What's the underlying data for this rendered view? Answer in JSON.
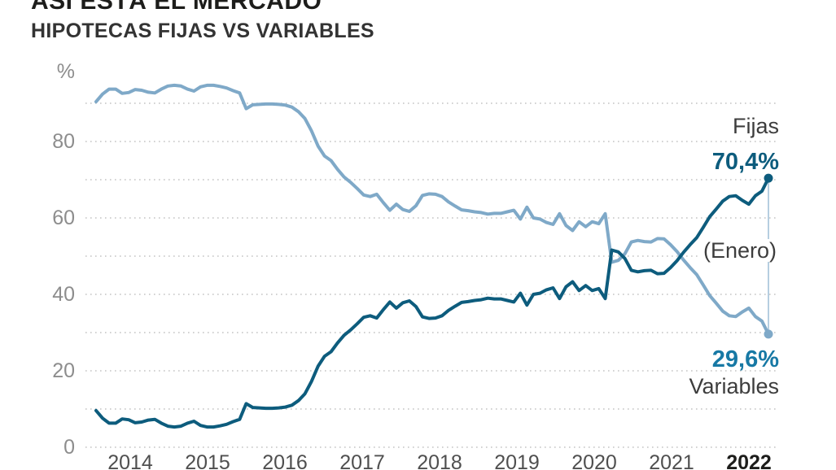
{
  "header": {
    "title": "ASÍ ESTÁ EL MERCADO",
    "subtitle": "HIPOTECAS FIJAS VS VARIABLES"
  },
  "chart_data": {
    "type": "line",
    "title": "HIPOTECAS FIJAS VS VARIABLES",
    "unit_label": "%",
    "x_tick_labels": [
      "2014",
      "2015",
      "2016",
      "2017",
      "2018",
      "2019",
      "2020",
      "2021",
      "2022"
    ],
    "y_tick_labels": [
      80,
      60,
      40,
      20,
      0
    ],
    "ylim": [
      0,
      95
    ],
    "grid": "horizontal dotted gridlines every 10 percentage points, from 0 to 90",
    "legend_position": "right-end annotations next to last data points",
    "x_note": "monthly data from 2014 to enero 2022",
    "series": [
      {
        "name": "Fijas",
        "color": "#0d5c7d",
        "end_value": 70.4,
        "end_value_label": "70,4%",
        "values": [
          9.6,
          7.6,
          6.3,
          6.3,
          7.4,
          7.2,
          6.4,
          6.6,
          7.1,
          7.3,
          6.3,
          5.5,
          5.3,
          5.5,
          6.3,
          6.8,
          5.7,
          5.3,
          5.3,
          5.6,
          6.0,
          6.7,
          7.3,
          11.4,
          10.4,
          10.3,
          10.2,
          10.2,
          10.3,
          10.5,
          11.0,
          12.2,
          14.0,
          17.2,
          21.2,
          23.8,
          25.0,
          27.3,
          29.3,
          30.7,
          32.3,
          34.0,
          34.4,
          33.8,
          36.0,
          38.0,
          36.4,
          37.8,
          38.3,
          36.8,
          34.1,
          33.7,
          33.8,
          34.4,
          35.8,
          36.9,
          37.9,
          38.1,
          38.4,
          38.6,
          39.0,
          38.8,
          38.8,
          38.4,
          38.0,
          40.3,
          37.2,
          40.0,
          40.3,
          41.2,
          41.7,
          38.9,
          42.0,
          43.3,
          41.0,
          42.3,
          41.0,
          41.5,
          38.9,
          51.6,
          51.1,
          49.4,
          46.3,
          45.9,
          46.2,
          46.3,
          45.4,
          45.5,
          47.0,
          48.8,
          51.0,
          53.0,
          54.8,
          57.5,
          60.3,
          62.3,
          64.4,
          65.6,
          65.8,
          64.6,
          63.6,
          65.8,
          67.0,
          70.4
        ]
      },
      {
        "name": "Variables",
        "color": "#7fa9c8",
        "end_value": 29.6,
        "end_value_label": "29,6%",
        "values": [
          90.4,
          92.4,
          93.7,
          93.7,
          92.6,
          92.8,
          93.6,
          93.4,
          92.9,
          92.7,
          93.7,
          94.5,
          94.7,
          94.5,
          93.7,
          93.2,
          94.3,
          94.7,
          94.7,
          94.4,
          94.0,
          93.3,
          92.7,
          88.6,
          89.6,
          89.7,
          89.8,
          89.8,
          89.7,
          89.5,
          89.0,
          87.8,
          86.0,
          82.8,
          78.8,
          76.2,
          75.0,
          72.7,
          70.7,
          69.3,
          67.7,
          66.0,
          65.6,
          66.2,
          64.0,
          62.0,
          63.6,
          62.2,
          61.7,
          63.2,
          65.9,
          66.3,
          66.2,
          65.6,
          64.2,
          63.1,
          62.1,
          61.9,
          61.6,
          61.4,
          61.0,
          61.2,
          61.2,
          61.6,
          62.0,
          59.7,
          62.8,
          60.0,
          59.7,
          58.8,
          58.3,
          61.1,
          58.0,
          56.7,
          59.0,
          57.7,
          59.0,
          58.5,
          61.1,
          48.4,
          48.9,
          50.6,
          53.7,
          54.1,
          53.8,
          53.7,
          54.6,
          54.5,
          53.0,
          51.2,
          49.0,
          47.0,
          45.2,
          42.5,
          39.7,
          37.7,
          35.6,
          34.4,
          34.2,
          35.4,
          36.4,
          34.2,
          33.0,
          29.6
        ]
      }
    ],
    "annotations": {
      "fijas_name": "Fijas",
      "fijas_value": "70,4%",
      "month_note": "(Enero)",
      "variables_value": "29,6%",
      "variables_name": "Variables"
    }
  },
  "colors": {
    "fijas_line": "#0d5c7d",
    "variables_line": "#7fa9c8",
    "fijas_value_text": "#0d5c7d",
    "variables_value_text": "#1779a5",
    "grid": "#c4c4c4",
    "axis_text": "#8d8d8d",
    "year_text": "#4f4f4f",
    "year_current_text": "#1d1d1b",
    "annotation_text": "#3d3d3d",
    "connector": "#9dbed6",
    "background": "#ffffff"
  }
}
